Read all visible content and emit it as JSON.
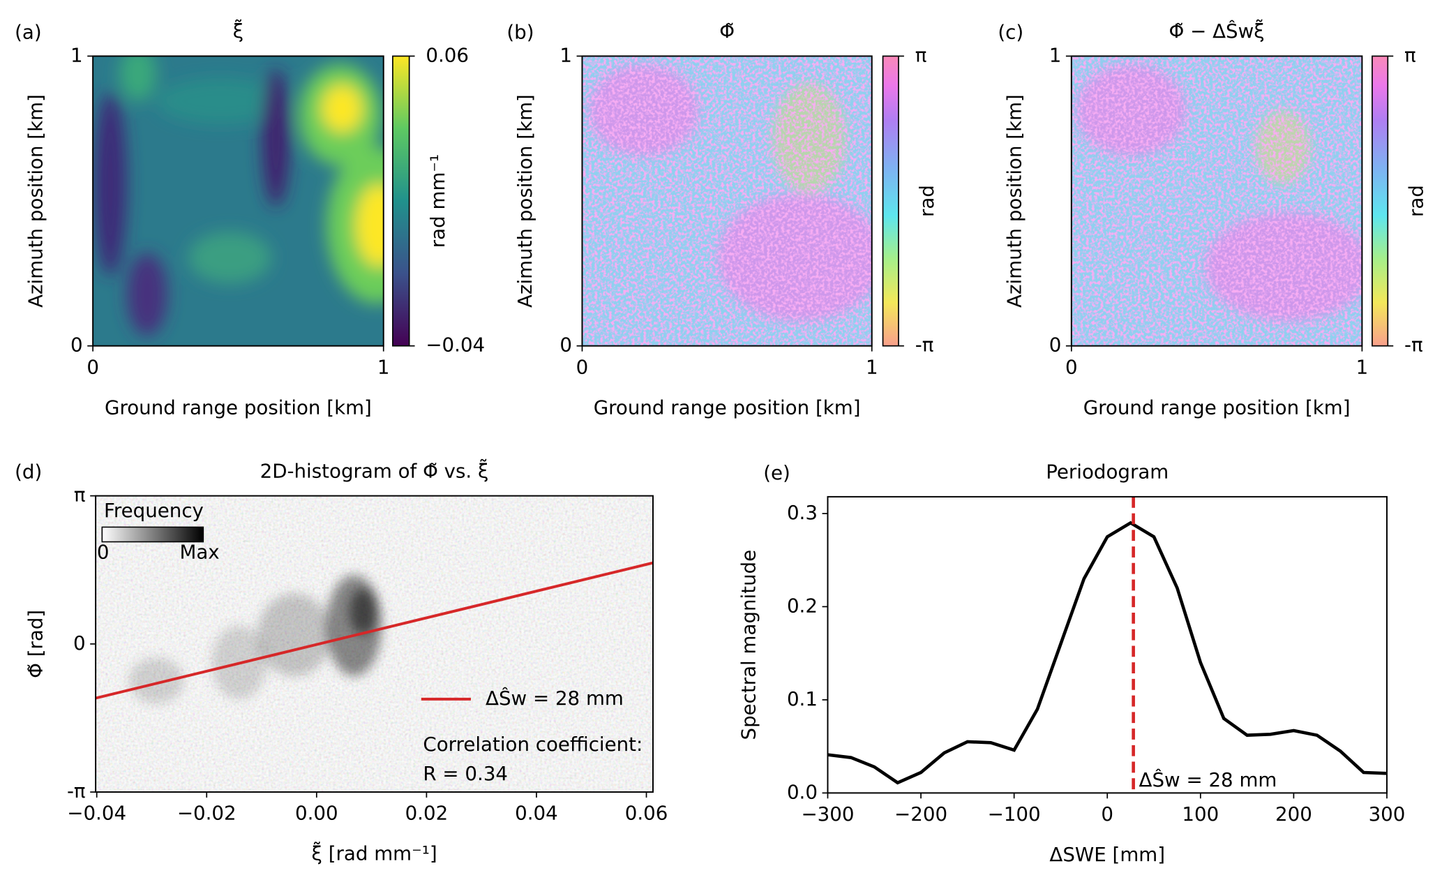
{
  "chart_data": [
    {
      "type": "heatmap",
      "panel": "(a)",
      "title": "ξ̃",
      "xlabel": "Ground range position [km]",
      "ylabel": "Azimuth position [km]",
      "xlim": [
        0,
        1
      ],
      "xticks": [
        0,
        1
      ],
      "ylim": [
        0,
        1
      ],
      "yticks": [
        0,
        1
      ],
      "colorbar": {
        "label": "rad mm⁻¹",
        "colormap": "viridis",
        "lim": [
          -0.04,
          0.06
        ],
        "ticks": [
          {
            "value": -0.04,
            "label": "−0.04"
          },
          0.06
        ]
      }
    },
    {
      "type": "heatmap",
      "panel": "(b)",
      "title": "Φ̃",
      "xlabel": "Ground range position [km]",
      "ylabel": "Azimuth position [km]",
      "xlim": [
        0,
        1
      ],
      "xticks": [
        0,
        1
      ],
      "ylim": [
        0,
        1
      ],
      "yticks": [
        0,
        1
      ],
      "colorbar": {
        "label": "rad",
        "colormap": "cyclic",
        "lim": [
          -3.14159,
          3.14159
        ],
        "ticks": [
          {
            "value": -3.14159,
            "label": "-π"
          },
          {
            "value": 3.14159,
            "label": "π"
          }
        ]
      }
    },
    {
      "type": "heatmap",
      "panel": "(c)",
      "title": "Φ̃ − ΔŜwξ̃",
      "xlabel": "Ground range position [km]",
      "ylabel": "Azimuth position [km]",
      "xlim": [
        0,
        1
      ],
      "xticks": [
        0,
        1
      ],
      "ylim": [
        0,
        1
      ],
      "yticks": [
        0,
        1
      ],
      "colorbar": {
        "label": "rad",
        "colormap": "cyclic",
        "lim": [
          -3.14159,
          3.14159
        ],
        "ticks": [
          {
            "value": -3.14159,
            "label": "-π"
          },
          {
            "value": 3.14159,
            "label": "π"
          }
        ]
      }
    },
    {
      "type": "hist2d",
      "panel": "(d)",
      "title": "2D-histogram of Φ̃ vs. ξ̃",
      "xlabel": "ξ̃ [rad mm⁻¹]",
      "ylabel": "Φ̃ [rad]",
      "xlim": [
        -0.0402,
        0.0612
      ],
      "xticks": [
        {
          "value": -0.04,
          "label": "−0.04"
        },
        {
          "value": -0.02,
          "label": "−0.02"
        },
        {
          "value": 0,
          "label": "0.00"
        },
        0.02,
        0.04,
        0.06
      ],
      "ylim": [
        -3.14159,
        3.14159
      ],
      "yticks": [
        {
          "value": -3.14159,
          "label": "-π"
        },
        0,
        {
          "value": 3.14159,
          "label": "π"
        }
      ],
      "series": [
        {
          "name": "ΔŜw = 28 mm",
          "color": "#d62728",
          "x": [
            -0.0402,
            0.0612
          ],
          "values": [
            -1.15,
            1.72
          ]
        }
      ],
      "legend": "lower right",
      "annotations": [
        "Correlation coefficient:",
        "R = 0.34"
      ],
      "inset_colorbar": {
        "label": "Frequency",
        "min_label": "0",
        "max_label": "Max"
      }
    },
    {
      "type": "line",
      "panel": "(e)",
      "title": "Periodogram",
      "xlabel": "ΔSWE [mm]",
      "ylabel": "Spectral magnitude",
      "xlim": [
        -300,
        300
      ],
      "xticks": [
        {
          "value": -300,
          "label": "−300"
        },
        {
          "value": -200,
          "label": "−200"
        },
        {
          "value": -100,
          "label": "−100"
        },
        0,
        100,
        200,
        300
      ],
      "ylim": [
        0,
        0.318
      ],
      "yticks": [
        {
          "value": 0,
          "label": "0.0"
        },
        0.1,
        0.2,
        0.3
      ],
      "x": [
        -300,
        -275,
        -250,
        -225,
        -200,
        -175,
        -150,
        -125,
        -100,
        -75,
        -50,
        -25,
        0,
        25,
        50,
        75,
        100,
        125,
        150,
        175,
        200,
        225,
        250,
        275,
        300
      ],
      "series": [
        {
          "color": "#000000",
          "values": [
            0.041,
            0.038,
            0.028,
            0.011,
            0.022,
            0.043,
            0.055,
            0.054,
            0.046,
            0.09,
            0.16,
            0.23,
            0.275,
            0.29,
            0.275,
            0.22,
            0.14,
            0.08,
            0.062,
            0.063,
            0.067,
            0.062,
            0.045,
            0.022,
            0.021
          ]
        }
      ],
      "vline": {
        "x": 28,
        "color": "#d62728",
        "label": "ΔŜw = 28 mm"
      }
    }
  ]
}
